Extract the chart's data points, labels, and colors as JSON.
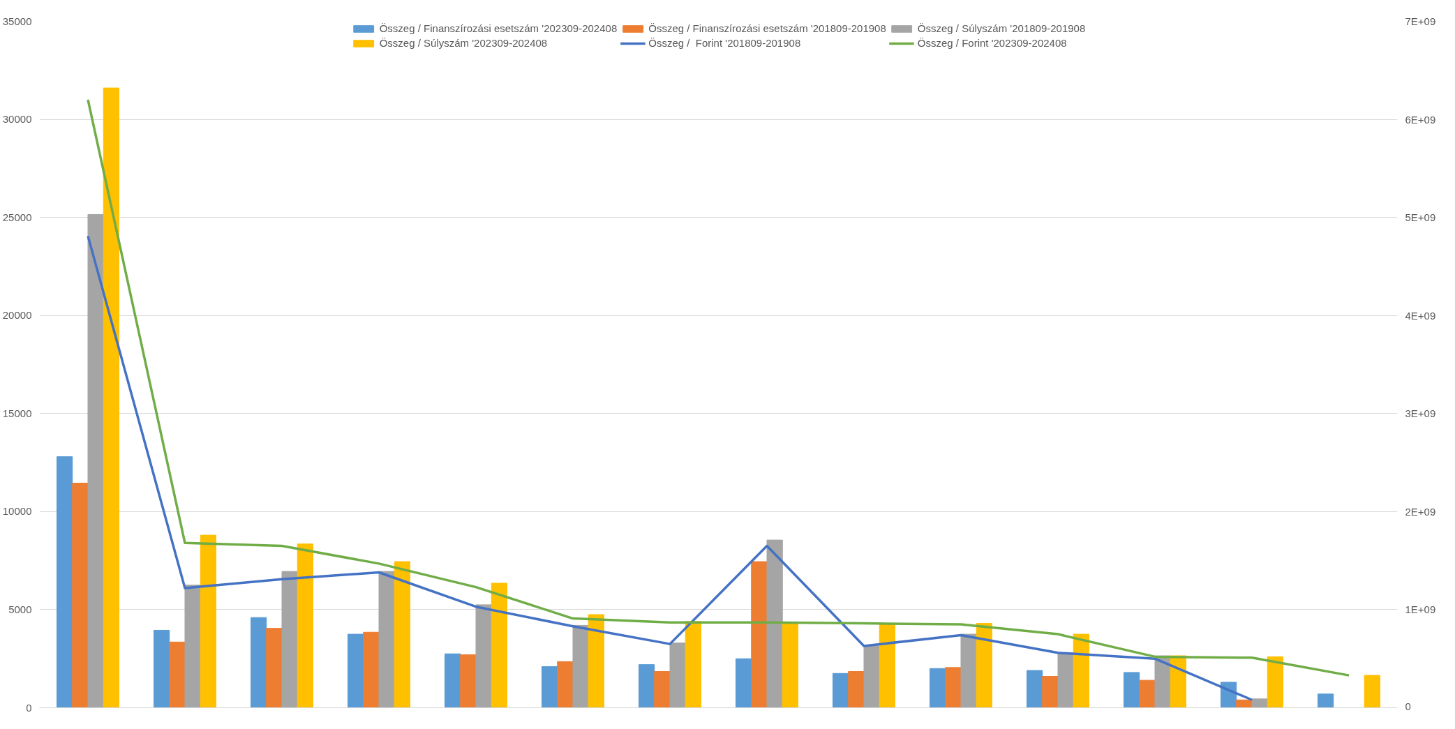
{
  "chart_data": {
    "type": "bar",
    "categories": [
      null,
      null,
      null,
      null,
      null,
      null,
      null,
      null,
      null,
      null,
      null,
      null,
      null,
      null
    ],
    "series": [
      {
        "name": "Összeg / Finanszírozási esetszám '202309-202408",
        "color": "#5b9bd5",
        "values": [
          12800,
          3950,
          4600,
          3750,
          2750,
          2100,
          2200,
          2500,
          1750,
          2000,
          1900,
          1800,
          1300,
          700
        ]
      },
      {
        "name": "Összeg / Finanszírozási esetszám '201809-201908",
        "color": "#ed7d31",
        "values": [
          11450,
          3350,
          4050,
          3850,
          2700,
          2350,
          1850,
          7450,
          1850,
          2050,
          1600,
          1400,
          400,
          null
        ]
      },
      {
        "name": "Összeg / Súlyszám '201809-201908",
        "color": "#a5a5a5",
        "values": [
          25150,
          6250,
          6950,
          6950,
          5250,
          4200,
          3300,
          8550,
          3150,
          3750,
          2800,
          2650,
          450,
          null
        ]
      },
      {
        "name": "Összeg / Súlyszám '202309-202408",
        "color": "#ffc000",
        "values": [
          31600,
          8800,
          8350,
          7450,
          6350,
          4750,
          4400,
          4350,
          4300,
          4300,
          3750,
          2650,
          2600,
          1650
        ]
      },
      {
        "name": "Összeg /  Forint '201809-201908",
        "color": "#4472c4",
        "type": "line",
        "axis": "y2",
        "values": [
          4810000000,
          1220000000,
          1310000000,
          1380000000,
          1030000000,
          830000000,
          650000000,
          1650000000,
          630000000,
          740000000,
          560000000,
          500000000,
          80000000,
          null
        ]
      },
      {
        "name": "Összeg / Forint '202309-202408",
        "color": "#70ad47",
        "type": "line",
        "axis": "y2",
        "values": [
          6200000000,
          1680000000,
          1650000000,
          1470000000,
          1230000000,
          910000000,
          870000000,
          870000000,
          860000000,
          850000000,
          750000000,
          520000000,
          510000000,
          330000000
        ]
      }
    ],
    "ylim": [
      0,
      35000
    ],
    "yticks": [
      0,
      5000,
      10000,
      15000,
      20000,
      25000,
      30000,
      35000
    ],
    "y2lim": [
      0,
      7000000000
    ],
    "y2ticks": [
      {
        "value": 0,
        "label": "0"
      },
      {
        "value": 1000000000,
        "label": "1E+09"
      },
      {
        "value": 2000000000,
        "label": "2E+09"
      },
      {
        "value": 3000000000,
        "label": "3E+09"
      },
      {
        "value": 4000000000,
        "label": "4E+09"
      },
      {
        "value": 5000000000,
        "label": "5E+09"
      },
      {
        "value": 6000000000,
        "label": "6E+09"
      },
      {
        "value": 7000000000,
        "label": "7E+09"
      }
    ],
    "grid": "y",
    "legend": "top",
    "marker": "none",
    "line_style": "solid",
    "tick_labels": "y"
  }
}
